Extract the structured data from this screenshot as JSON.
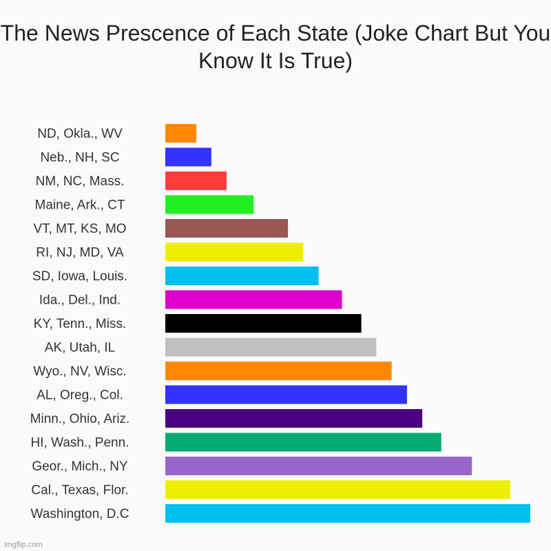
{
  "chart_data": {
    "type": "bar",
    "orientation": "horizontal",
    "title": "The News Prescence of Each State (Joke Chart But You Know It Is True)",
    "xlabel": "",
    "ylabel": "",
    "grid": false,
    "legend": "none",
    "xlim": [
      0,
      100
    ],
    "categories": [
      "ND, Okla., WV",
      "Neb., NH, SC",
      "NM, NC, Mass.",
      "Maine, Ark., CT",
      "VT, MT, KS, MO",
      "RI, NJ, MD, VA",
      "SD, Iowa, Louis.",
      "Ida., Del., Ind.",
      "KY, Tenn., Miss.",
      "AK, Utah, IL",
      "Wyo., NV, Wisc.",
      "AL, Oreg., Col.",
      "Minn., Ohio, Ariz.",
      "HI, Wash., Penn.",
      "Geor., Mich., NY",
      "Cal., Texas, Flor.",
      "Washington, D.C"
    ],
    "values": [
      8.5,
      12.6,
      16.8,
      24.2,
      33.6,
      37.8,
      42.0,
      48.4,
      53.7,
      57.8,
      62.0,
      66.2,
      70.4,
      75.6,
      84.0,
      94.5,
      100
    ],
    "colors": [
      "#ff8800",
      "#3333ff",
      "#ff3c3c",
      "#22f022",
      "#9b5555",
      "#eeee00",
      "#00c0f0",
      "#dd00cc",
      "#000000",
      "#c0c0c0",
      "#ff8800",
      "#3333ff",
      "#4b0082",
      "#00aa70",
      "#9966cc",
      "#eeee00",
      "#00c0f0"
    ]
  },
  "watermark": "imgflip.com"
}
